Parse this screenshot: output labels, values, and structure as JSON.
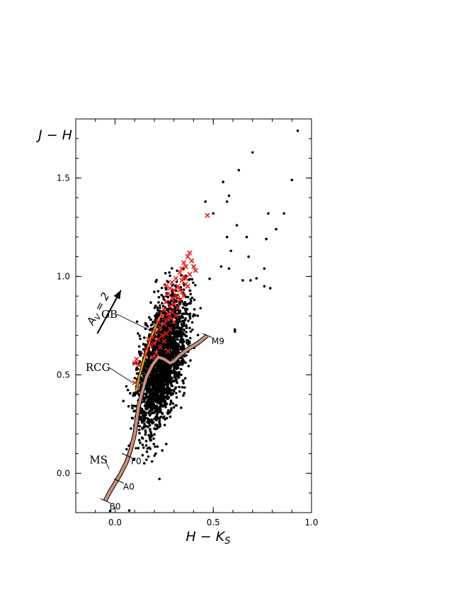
{
  "chart_data": {
    "type": "scatter",
    "xlabel": "H − K",
    "xlabel_sub": "S",
    "ylabel": "J − H",
    "xlim": [
      -0.2,
      1.0
    ],
    "ylim": [
      -0.2,
      1.8
    ],
    "x_ticks": [
      {
        "value": 0.0,
        "label": "0.0"
      },
      {
        "value": 0.5,
        "label": "0.5"
      },
      {
        "value": 1.0,
        "label": "1.0"
      }
    ],
    "y_ticks": [
      {
        "value": 0.0,
        "label": "0.0"
      },
      {
        "value": 0.5,
        "label": "0.5"
      },
      {
        "value": 1.0,
        "label": "1.0"
      },
      {
        "value": 1.5,
        "label": "1.5"
      }
    ],
    "grid": false,
    "black_points_core": {
      "count": 2400,
      "center_x": 0.24,
      "center_y": 0.56,
      "spread_x": 0.062,
      "spread_y": 0.14,
      "slope": 1.55
    },
    "black_points_outliers": [
      [
        0.93,
        1.74
      ],
      [
        0.7,
        1.63
      ],
      [
        0.63,
        1.54
      ],
      [
        0.9,
        1.49
      ],
      [
        0.55,
        1.48
      ],
      [
        0.58,
        1.41
      ],
      [
        0.57,
        1.38
      ],
      [
        0.46,
        1.38
      ],
      [
        0.5,
        1.32
      ],
      [
        0.78,
        1.32
      ],
      [
        0.86,
        1.32
      ],
      [
        0.62,
        1.26
      ],
      [
        0.82,
        1.24
      ],
      [
        0.57,
        1.2
      ],
      [
        0.67,
        1.2
      ],
      [
        0.77,
        1.19
      ],
      [
        0.59,
        1.13
      ],
      [
        0.68,
        1.1
      ],
      [
        0.54,
        1.05
      ],
      [
        0.58,
        1.04
      ],
      [
        0.76,
        1.04
      ],
      [
        0.72,
        0.99
      ],
      [
        0.65,
        0.98
      ],
      [
        0.69,
        0.98
      ],
      [
        0.79,
        0.94
      ],
      [
        0.76,
        0.95
      ],
      [
        0.61,
        0.73
      ],
      [
        0.61,
        0.72
      ]
    ],
    "red_crosses": [
      [
        0.47,
        1.31
      ],
      [
        0.38,
        1.12
      ],
      [
        0.37,
        1.1
      ],
      [
        0.39,
        1.08
      ],
      [
        0.35,
        1.07
      ],
      [
        0.4,
        1.05
      ],
      [
        0.36,
        1.05
      ],
      [
        0.41,
        1.03
      ],
      [
        0.33,
        1.02
      ],
      [
        0.38,
        1.01
      ],
      [
        0.35,
        1.0
      ],
      [
        0.31,
        0.99
      ],
      [
        0.34,
        0.98
      ],
      [
        0.29,
        0.97
      ],
      [
        0.36,
        0.96
      ],
      [
        0.32,
        0.95
      ],
      [
        0.28,
        0.94
      ],
      [
        0.3,
        0.93
      ],
      [
        0.34,
        0.92
      ],
      [
        0.27,
        0.91
      ],
      [
        0.31,
        0.9
      ],
      [
        0.29,
        0.89
      ],
      [
        0.33,
        0.88
      ],
      [
        0.26,
        0.87
      ],
      [
        0.3,
        0.86
      ],
      [
        0.28,
        0.85
      ],
      [
        0.32,
        0.84
      ],
      [
        0.25,
        0.83
      ],
      [
        0.29,
        0.82
      ],
      [
        0.27,
        0.81
      ],
      [
        0.31,
        0.8
      ],
      [
        0.24,
        0.8
      ],
      [
        0.28,
        0.79
      ],
      [
        0.26,
        0.78
      ],
      [
        0.22,
        0.77
      ],
      [
        0.3,
        0.77
      ],
      [
        0.25,
        0.76
      ],
      [
        0.23,
        0.74
      ],
      [
        0.28,
        0.73
      ],
      [
        0.21,
        0.72
      ],
      [
        0.26,
        0.71
      ],
      [
        0.24,
        0.7
      ],
      [
        0.19,
        0.69
      ],
      [
        0.22,
        0.68
      ],
      [
        0.17,
        0.68
      ],
      [
        0.25,
        0.67
      ],
      [
        0.2,
        0.66
      ],
      [
        0.18,
        0.65
      ],
      [
        0.23,
        0.64
      ],
      [
        0.16,
        0.63
      ],
      [
        0.27,
        0.62
      ],
      [
        0.21,
        0.61
      ],
      [
        0.15,
        0.6
      ],
      [
        0.19,
        0.59
      ],
      [
        0.11,
        0.58
      ],
      [
        0.1,
        0.56
      ],
      [
        0.12,
        0.55
      ],
      [
        0.1,
        0.46
      ],
      [
        0.33,
        0.93
      ],
      [
        0.35,
        0.9
      ],
      [
        0.37,
        0.95
      ],
      [
        0.26,
        0.95
      ],
      [
        0.32,
        0.89
      ],
      [
        0.34,
        1.04
      ],
      [
        0.36,
        0.99
      ]
    ],
    "main_sequence": [
      [
        -0.05,
        -0.14
      ],
      [
        -0.03,
        -0.1
      ],
      [
        0.0,
        -0.05
      ],
      [
        0.03,
        0.0
      ],
      [
        0.06,
        0.06
      ],
      [
        0.08,
        0.12
      ],
      [
        0.1,
        0.2
      ],
      [
        0.11,
        0.27
      ],
      [
        0.12,
        0.34
      ],
      [
        0.14,
        0.42
      ],
      [
        0.16,
        0.49
      ],
      [
        0.19,
        0.55
      ],
      [
        0.22,
        0.59
      ],
      [
        0.25,
        0.58
      ],
      [
        0.28,
        0.56
      ],
      [
        0.3,
        0.57
      ],
      [
        0.33,
        0.6
      ],
      [
        0.37,
        0.63
      ],
      [
        0.42,
        0.66
      ],
      [
        0.47,
        0.7
      ]
    ],
    "giant_branch": [
      [
        0.11,
        0.42
      ],
      [
        0.12,
        0.48
      ],
      [
        0.14,
        0.55
      ],
      [
        0.16,
        0.62
      ],
      [
        0.18,
        0.68
      ],
      [
        0.2,
        0.73
      ],
      [
        0.22,
        0.78
      ],
      [
        0.24,
        0.81
      ]
    ],
    "spectral_marks": [
      {
        "label": "B0",
        "x": -0.05,
        "y": -0.14
      },
      {
        "label": "A0",
        "x": 0.02,
        "y": -0.04
      },
      {
        "label": "F0",
        "x": 0.06,
        "y": 0.09
      },
      {
        "label": "M9",
        "x": 0.47,
        "y": 0.7
      }
    ],
    "annotations": [
      {
        "label": "MS",
        "text_x": -0.13,
        "text_y": 0.05,
        "target_x": -0.03,
        "target_y": 0.02
      },
      {
        "label": "RCG",
        "text_x": -0.15,
        "text_y": 0.52,
        "target_x": 0.09,
        "target_y": 0.46
      },
      {
        "label": "GB",
        "text_x": -0.07,
        "text_y": 0.79,
        "target_x": 0.19,
        "target_y": 0.72
      }
    ],
    "extinction_vector": {
      "label": "A",
      "label_sub": "V",
      "label_suffix": " = 2",
      "x0": -0.09,
      "y0": 0.71,
      "x1": 0.03,
      "y1": 0.93
    },
    "colors": {
      "black_points": "#000000",
      "red_crosses": "#e8191b",
      "main_sequence_fill": "#c99080",
      "giant_branch_fill": "#e8a317"
    }
  }
}
